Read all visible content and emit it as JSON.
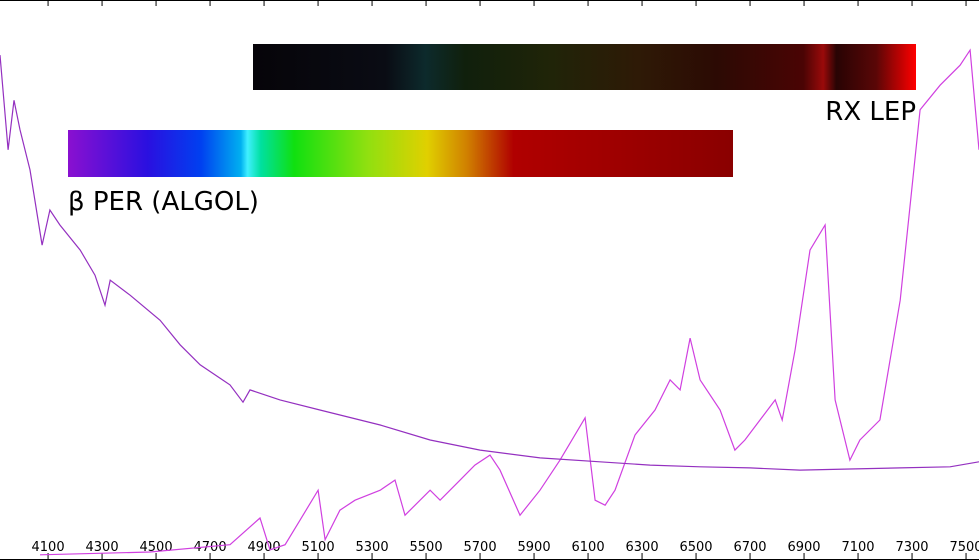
{
  "chart_data": {
    "type": "line",
    "xlim": [
      3922,
      7548
    ],
    "ylim": [
      0,
      100
    ],
    "xticks": [
      4100,
      4300,
      4500,
      4700,
      4900,
      5100,
      5300,
      5500,
      5700,
      5900,
      6100,
      6300,
      6500,
      6700,
      6900,
      7100,
      7300,
      7500
    ],
    "series": [
      {
        "name": "RX LEP",
        "color": "#d040e0",
        "x": [
          4070,
          4478,
          4774,
          4885,
          4922,
          4978,
          5033,
          5100,
          5126,
          5181,
          5237,
          5330,
          5385,
          5422,
          5515,
          5552,
          5626,
          5681,
          5737,
          5774,
          5848,
          5922,
          5996,
          6089,
          6126,
          6163,
          6200,
          6274,
          6348,
          6404,
          6441,
          6478,
          6515,
          6589,
          6644,
          6681,
          6737,
          6793,
          6819,
          6867,
          6922,
          6978,
          7015,
          7070,
          7107,
          7181,
          7256,
          7330,
          7404,
          7478,
          7515,
          7548
        ],
        "values": [
          0.4,
          0.9,
          2.2,
          7.0,
          1.3,
          2.2,
          6.6,
          12.0,
          3.1,
          8.4,
          10.2,
          12.0,
          13.8,
          7.5,
          12.0,
          10.2,
          13.8,
          16.5,
          18.3,
          15.6,
          7.5,
          12.0,
          17.4,
          25.0,
          10.2,
          9.3,
          12.0,
          21.9,
          26.4,
          31.8,
          30.0,
          39.3,
          31.8,
          26.4,
          19.2,
          21.0,
          24.6,
          28.2,
          24.6,
          37.2,
          55.1,
          59.6,
          28.2,
          17.4,
          21.0,
          24.6,
          46.1,
          80.3,
          84.7,
          88.3,
          91.0,
          73.1
        ]
      },
      {
        "name": "β PER (ALGOL)",
        "color": "#9430c0",
        "x": [
          3922,
          3952,
          3974,
          3996,
          4033,
          4078,
          4107,
          4144,
          4219,
          4274,
          4311,
          4330,
          4404,
          4515,
          4589,
          4663,
          4774,
          4822,
          4848,
          4959,
          5107,
          5330,
          5515,
          5700,
          5922,
          6144,
          6330,
          6515,
          6700,
          6885,
          7070,
          7256,
          7441,
          7548
        ],
        "values": [
          90.1,
          73.1,
          82.0,
          76.7,
          69.5,
          56.0,
          62.3,
          59.6,
          55.1,
          50.6,
          45.2,
          49.7,
          47.0,
          42.5,
          38.1,
          34.5,
          30.9,
          27.8,
          30.0,
          28.2,
          26.4,
          23.7,
          21.0,
          19.2,
          17.8,
          17.1,
          16.5,
          16.2,
          16.0,
          15.6,
          15.8,
          16.0,
          16.2,
          17.1
        ]
      }
    ]
  }
}
